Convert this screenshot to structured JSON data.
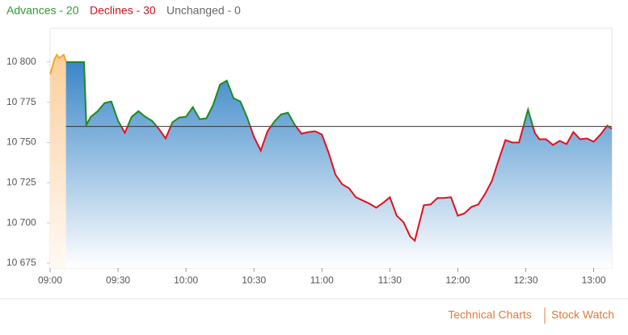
{
  "breadth": {
    "advances": "Advances - 20",
    "declines": "Declines - 30",
    "unchanged": "Unchanged - 0"
  },
  "links": [
    "Technical Charts",
    "Stock Watch"
  ],
  "chart_data": {
    "type": "line",
    "xlim": [
      "09:00",
      "13:08"
    ],
    "xticks": [
      "09:00",
      "09:30",
      "10:00",
      "10:30",
      "11:00",
      "11:30",
      "12:00",
      "12:30",
      "13:00"
    ],
    "ylim": [
      10672,
      10821
    ],
    "yticks": [
      {
        "value": 10675,
        "label": "10 675"
      },
      {
        "value": 10700,
        "label": "10 700"
      },
      {
        "value": 10725,
        "label": "10 725"
      },
      {
        "value": 10750,
        "label": "10 750"
      },
      {
        "value": 10775,
        "label": "10 775"
      },
      {
        "value": 10800,
        "label": "10 800"
      }
    ],
    "reference": 10760,
    "up_color": "#1e8a1e",
    "down_color": "#e3101e",
    "preopen": {
      "color": "#f5a623",
      "x": [
        "09:00",
        "09:01",
        "09:02",
        "09:03",
        "09:04",
        "09:05",
        "09:06",
        "09:07"
      ],
      "values": [
        10792.5,
        10797,
        10802,
        10804.5,
        10802.5,
        10803.5,
        10804.5,
        10800.5
      ]
    },
    "x": [
      "09:07",
      "09:09",
      "09:12",
      "09:15",
      "09:16",
      "09:18",
      "09:21",
      "09:24",
      "09:27",
      "09:30",
      "09:33",
      "09:36",
      "09:39",
      "09:42",
      "09:45",
      "09:48",
      "09:51",
      "09:54",
      "09:57",
      "10:00",
      "10:03",
      "10:06",
      "10:09",
      "10:12",
      "10:15",
      "10:18",
      "10:21",
      "10:24",
      "10:27",
      "10:30",
      "10:33",
      "10:36",
      "10:39",
      "10:42",
      "10:45",
      "10:48",
      "10:51",
      "10:54",
      "10:57",
      "11:00",
      "11:03",
      "11:06",
      "11:09",
      "11:12",
      "11:15",
      "11:18",
      "11:21",
      "11:24",
      "11:27",
      "11:30",
      "11:33",
      "11:36",
      "11:39",
      "11:41",
      "11:45",
      "11:48",
      "11:51",
      "11:54",
      "11:57",
      "12:00",
      "12:03",
      "12:06",
      "12:09",
      "12:12",
      "12:15",
      "12:18",
      "12:21",
      "12:24",
      "12:27",
      "12:31",
      "12:34",
      "12:36",
      "12:39",
      "12:42",
      "12:45",
      "12:48",
      "12:51",
      "12:54",
      "12:57",
      "13:00",
      "13:03",
      "13:06",
      "13:08"
    ],
    "values": [
      10800,
      10800,
      10800,
      10800,
      10761,
      10766,
      10769.5,
      10774.5,
      10775.5,
      10763.5,
      10756,
      10766,
      10769.5,
      10766,
      10763.5,
      10758.5,
      10752.5,
      10762.5,
      10765.5,
      10766,
      10772,
      10764.5,
      10765,
      10773.5,
      10786,
      10788.5,
      10777.5,
      10775.5,
      10765.5,
      10753.5,
      10745,
      10757,
      10763,
      10767.5,
      10768.5,
      10761,
      10755.5,
      10756.5,
      10757,
      10755,
      10743.5,
      10730,
      10724,
      10721.5,
      10716,
      10714,
      10712,
      10709.5,
      10712.5,
      10716,
      10704.5,
      10700.5,
      10691.5,
      10689,
      10711,
      10711.5,
      10715.5,
      10715.5,
      10716,
      10704.5,
      10706,
      10710,
      10711.5,
      10718,
      10726,
      10739,
      10751.5,
      10750,
      10750,
      10770.5,
      10756,
      10752,
      10752,
      10748.5,
      10751,
      10749,
      10756.5,
      10752,
      10752.5,
      10750.5,
      10755,
      10760.5,
      10758.5
    ]
  }
}
